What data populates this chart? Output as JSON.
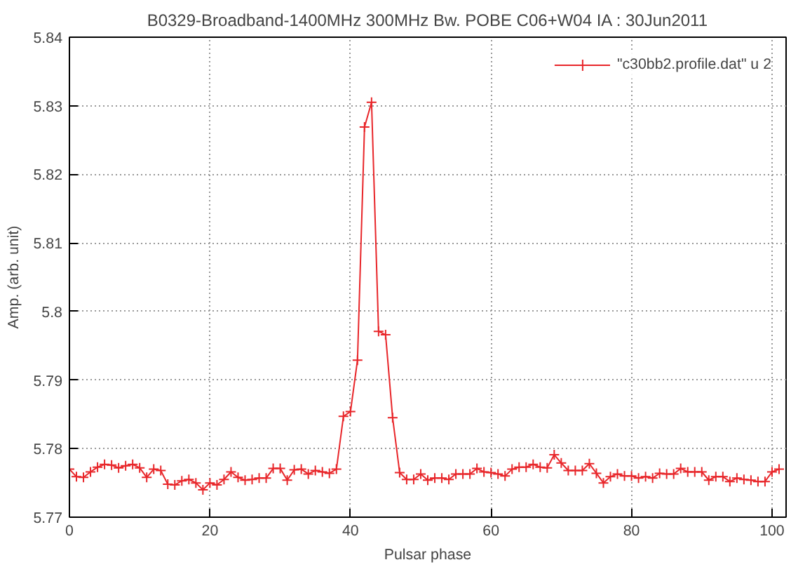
{
  "chart_data": {
    "type": "line",
    "title": "B0329-Broadband-1400MHz 300MHz Bw. POBE C06+W04 IA : 30Jun2011",
    "xlabel": "Pulsar phase",
    "ylabel": "Amp. (arb. unit)",
    "x": [
      0,
      1,
      2,
      3,
      4,
      5,
      6,
      7,
      8,
      9,
      10,
      11,
      12,
      13,
      14,
      15,
      16,
      17,
      18,
      19,
      20,
      21,
      22,
      23,
      24,
      25,
      26,
      27,
      28,
      29,
      30,
      31,
      32,
      33,
      34,
      35,
      36,
      37,
      38,
      39,
      40,
      41,
      42,
      43,
      44,
      45,
      46,
      47,
      48,
      49,
      50,
      51,
      52,
      53,
      54,
      55,
      56,
      57,
      58,
      59,
      60,
      61,
      62,
      63,
      64,
      65,
      66,
      67,
      68,
      69,
      70,
      71,
      72,
      73,
      74,
      75,
      76,
      77,
      78,
      79,
      80,
      81,
      82,
      83,
      84,
      85,
      86,
      87,
      88,
      89,
      90,
      91,
      92,
      93,
      94,
      95,
      96,
      97,
      98,
      99,
      100,
      101
    ],
    "series": [
      {
        "name": "\"c30bb2.profile.dat\" u 2",
        "color": "#e8262a",
        "values": [
          5.777,
          5.7759,
          5.7758,
          5.7766,
          5.7773,
          5.7777,
          5.7776,
          5.7772,
          5.7775,
          5.7777,
          5.7772,
          5.7758,
          5.777,
          5.7768,
          5.7748,
          5.7747,
          5.7753,
          5.7755,
          5.775,
          5.774,
          5.775,
          5.7747,
          5.7755,
          5.7766,
          5.7758,
          5.7754,
          5.7755,
          5.7757,
          5.7757,
          5.7771,
          5.7771,
          5.7754,
          5.7769,
          5.777,
          5.7763,
          5.7768,
          5.7766,
          5.7764,
          5.777,
          5.7847,
          5.7854,
          5.7929,
          5.8269,
          5.8305,
          5.7971,
          5.7966,
          5.7845,
          5.7765,
          5.7755,
          5.7755,
          5.7763,
          5.7754,
          5.7757,
          5.7757,
          5.7755,
          5.7763,
          5.7763,
          5.7763,
          5.7771,
          5.7766,
          5.7765,
          5.7763,
          5.776,
          5.777,
          5.7773,
          5.7773,
          5.7777,
          5.7773,
          5.7772,
          5.7791,
          5.7779,
          5.7768,
          5.7768,
          5.7768,
          5.7778,
          5.7764,
          5.775,
          5.7759,
          5.7763,
          5.776,
          5.776,
          5.7757,
          5.7759,
          5.7757,
          5.7764,
          5.7763,
          5.7763,
          5.7771,
          5.7766,
          5.7766,
          5.7766,
          5.7754,
          5.7759,
          5.7759,
          5.7752,
          5.7757,
          5.7755,
          5.7754,
          5.7752,
          5.7752,
          5.7766,
          5.777
        ]
      }
    ],
    "xlim": [
      0,
      102
    ],
    "ylim": [
      5.77,
      5.84
    ],
    "xticks": [
      0,
      20,
      40,
      60,
      80,
      100
    ],
    "yticks": [
      5.77,
      5.78,
      5.79,
      5.8,
      5.81,
      5.82,
      5.83,
      5.84
    ],
    "grid": true,
    "legend": "top right",
    "marker": "cross",
    "line_style": "solid"
  }
}
